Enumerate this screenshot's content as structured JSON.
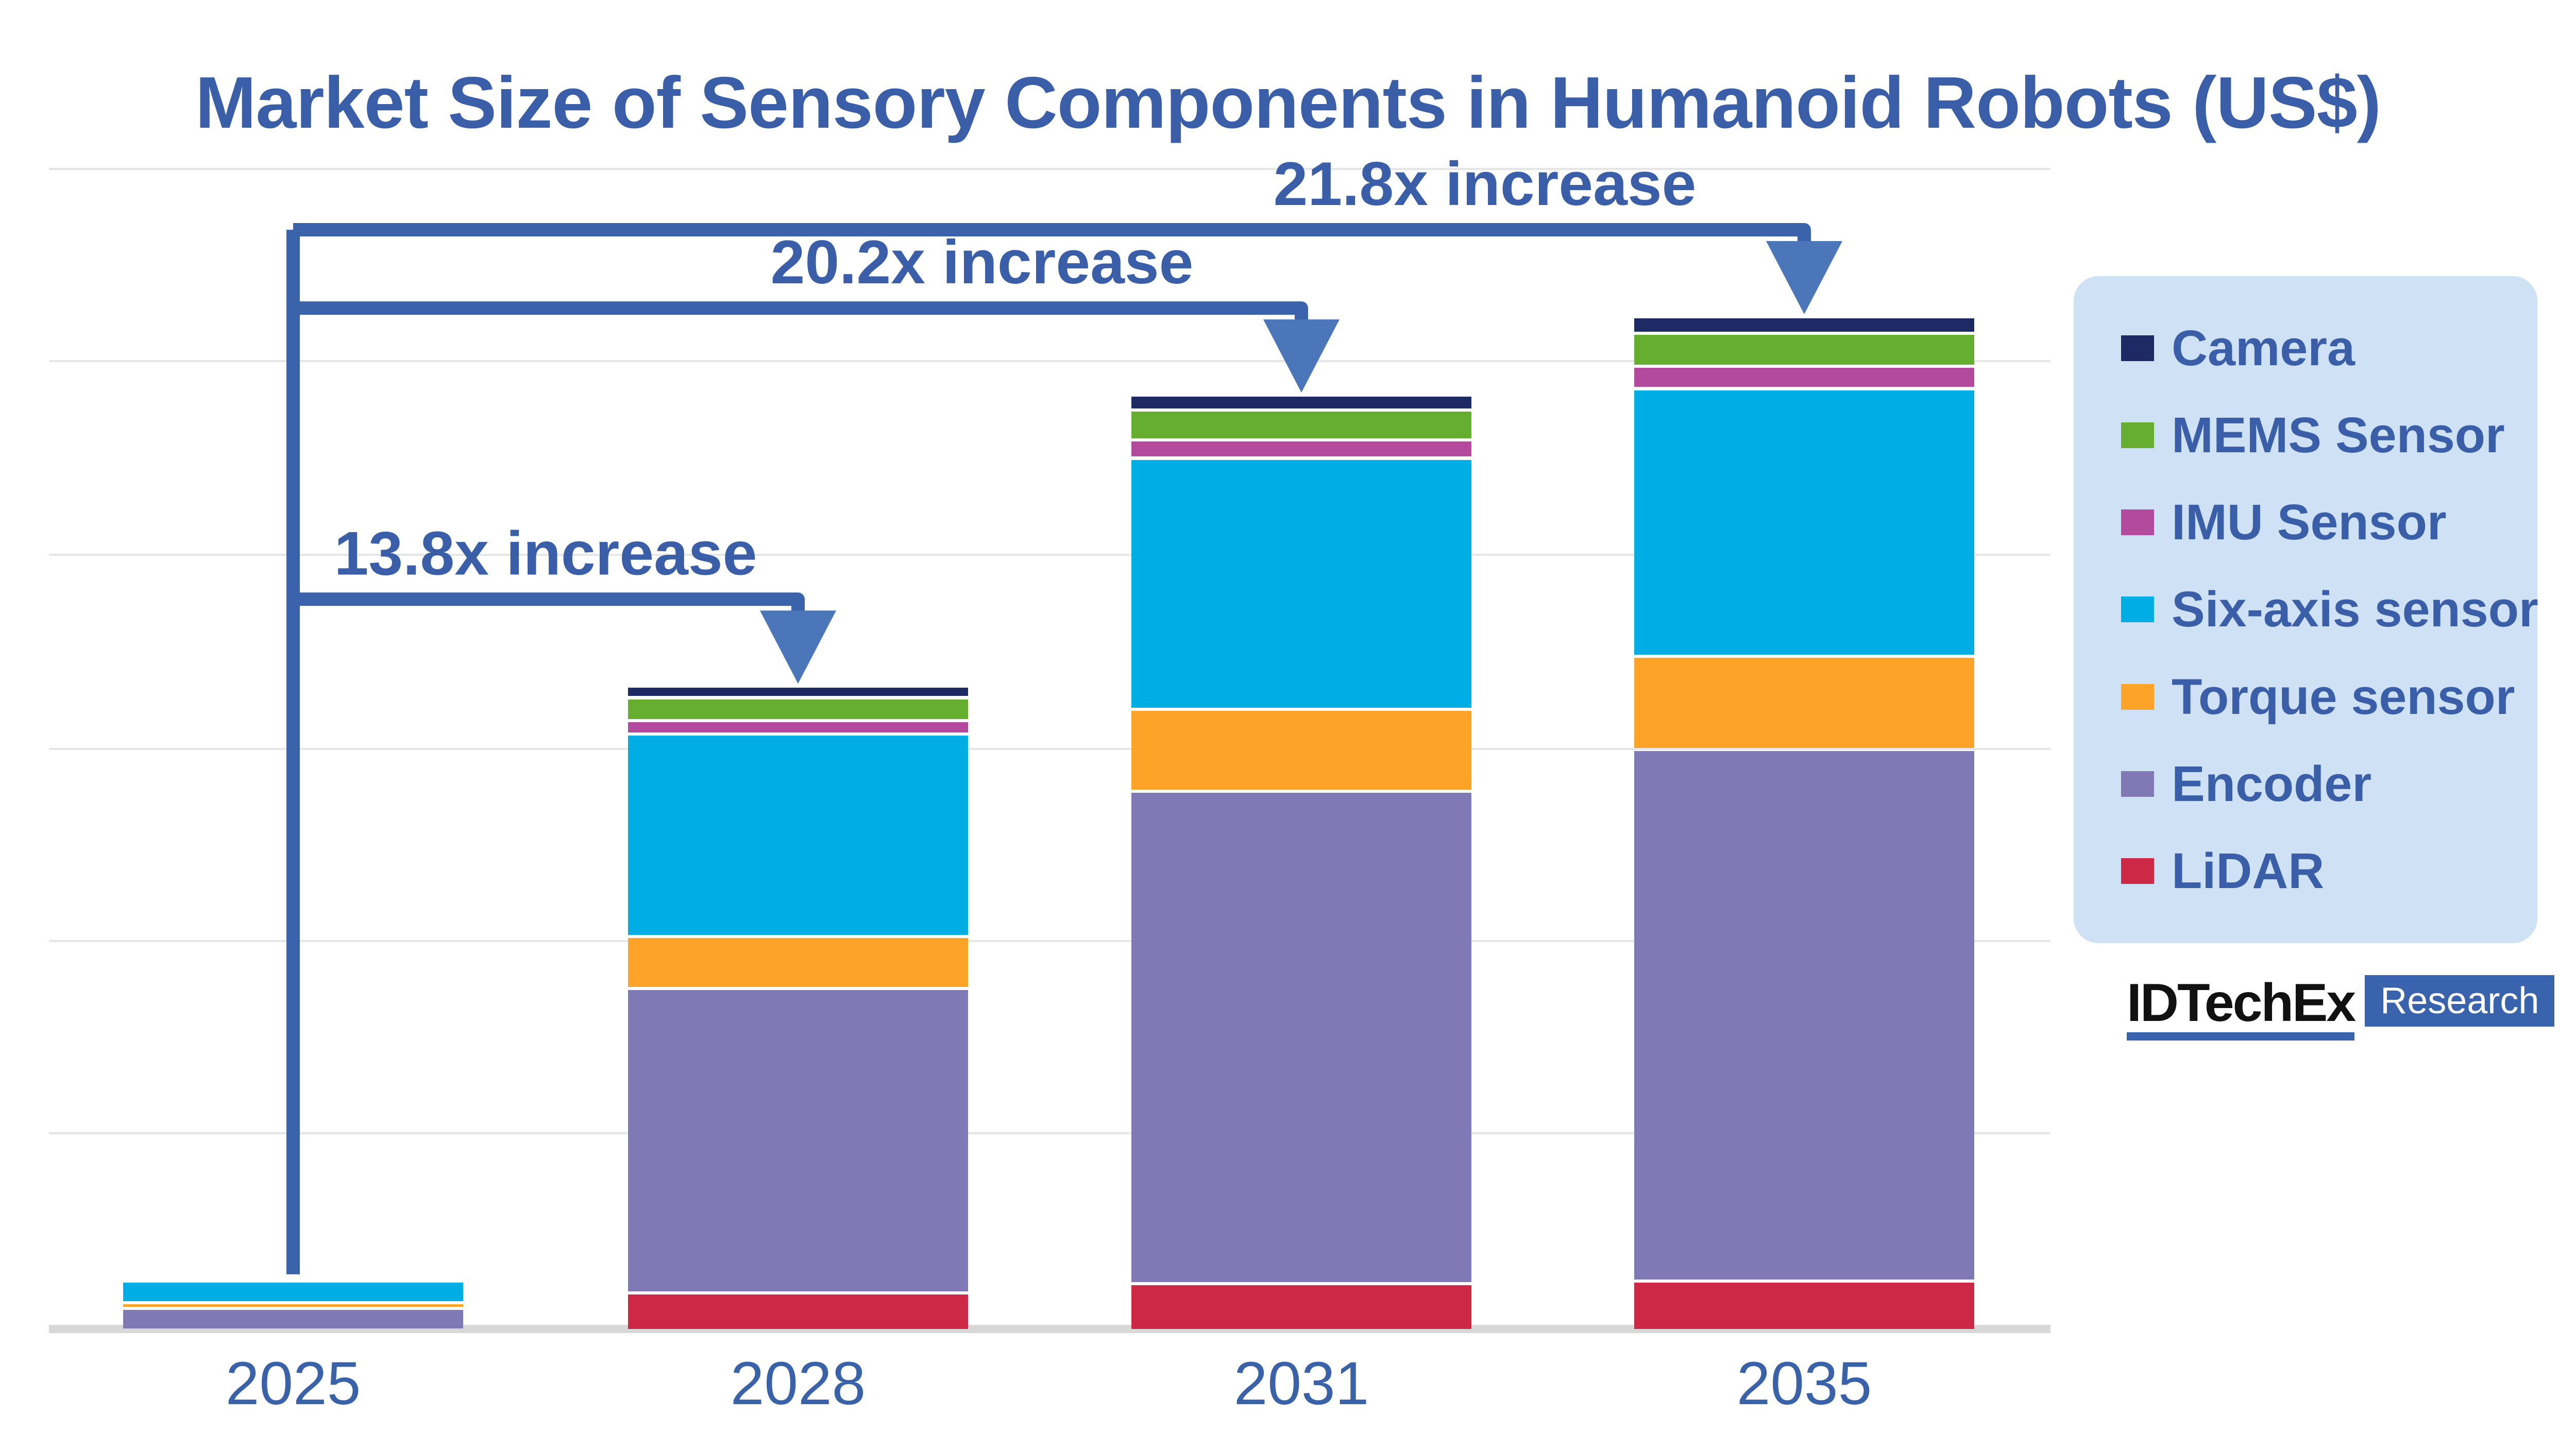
{
  "title": "Market Size of Sensory Components in Humanoid Robots (US$)",
  "source": {
    "brand": "IDTechEx",
    "label": "Research"
  },
  "colors": {
    "text_blue": "#3A5FA8",
    "annotation_line": "#3B63AB",
    "arrowhead": "#4B76BA",
    "gridline": "#E6E6E6",
    "axis_line": "#D8D8D8",
    "legend_background": "#CFE1F4"
  },
  "legend": {
    "position": "right"
  },
  "chart_data": {
    "type": "bar",
    "subtype": "stacked-vertical",
    "title": "Market Size of Sensory Components in Humanoid Robots (US$)",
    "xlabel": "",
    "ylabel": "",
    "y_axis_labels_shown": false,
    "grid": "horizontal",
    "value_unit": "relative units (2025 total = 1); y-axis unlabeled in source",
    "categories": [
      "2025",
      "2028",
      "2031",
      "2035"
    ],
    "totals_relative": [
      1.0,
      13.8,
      20.2,
      21.8
    ],
    "series": [
      {
        "name": "Camera",
        "color": "#1E2A63",
        "values": [
          0.02,
          0.18,
          0.25,
          0.29
        ]
      },
      {
        "name": "MEMS Sensor",
        "color": "#66AE2F",
        "values": [
          0.03,
          0.43,
          0.58,
          0.64
        ]
      },
      {
        "name": "IMU Sensor",
        "color": "#B44A9D",
        "values": [
          0.02,
          0.22,
          0.33,
          0.42
        ]
      },
      {
        "name": "Six-axis sensor",
        "color": "#00AEE6",
        "values": [
          0.4,
          4.3,
          5.35,
          5.7
        ]
      },
      {
        "name": "Torque sensor",
        "color": "#FDA428",
        "values": [
          0.055,
          1.05,
          1.7,
          1.95
        ]
      },
      {
        "name": "Encoder",
        "color": "#8079B6",
        "values": [
          0.4,
          6.5,
          10.55,
          11.4
        ]
      },
      {
        "name": "LiDAR",
        "color": "#CE2847",
        "values": [
          0.01,
          0.75,
          0.95,
          1.0
        ]
      }
    ],
    "annotations": [
      {
        "label": "13.8x increase",
        "from": "2025",
        "to": "2028"
      },
      {
        "label": "20.2x increase",
        "from": "2025",
        "to": "2031"
      },
      {
        "label": "21.8x increase",
        "from": "2025",
        "to": "2035"
      }
    ]
  }
}
